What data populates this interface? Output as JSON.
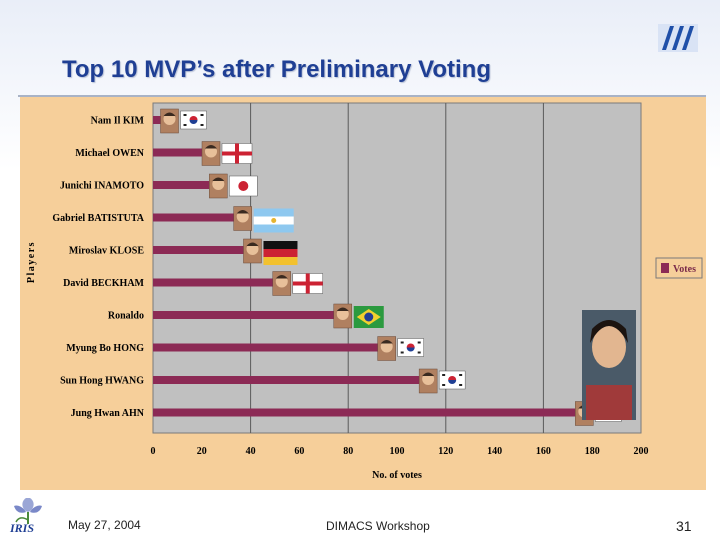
{
  "slide": {
    "title": "Top 10 MVP’s  after Preliminary Voting",
    "footer_date": "May 27, 2004",
    "footer_event": "DIMACS Workshop",
    "page_number": "31",
    "footer_logo_text": "IRIS"
  },
  "chart_data": {
    "type": "bar",
    "orientation": "horizontal",
    "categories": [
      "Nam Il KIM",
      "Michael OWEN",
      "Junichi INAMOTO",
      "Gabriel BATISTUTA",
      "Miroslav KLOSE",
      "David BECKHAM",
      "Ronaldo",
      "Myung Bo HONG",
      "Sun Hong HWANG",
      "Jung Hwan AHN"
    ],
    "series": [
      {
        "name": "Votes",
        "values": [
          8,
          25,
          28,
          38,
          42,
          54,
          79,
          97,
          114,
          178
        ]
      }
    ],
    "flags": [
      "korea",
      "england",
      "japan",
      "argentina",
      "germany",
      "england",
      "brazil",
      "korea",
      "korea",
      "korea"
    ],
    "xlabel": "No. of votes",
    "ylabel": "Players",
    "xlim": [
      0,
      200
    ],
    "xticks": [
      0,
      20,
      40,
      60,
      80,
      100,
      120,
      140,
      160,
      180,
      200
    ],
    "grid": "vertical lines at major ticks",
    "legend_position": "right",
    "colors": {
      "bar": "#8c2a55",
      "plot_bg": "#c0c0c0",
      "panel_bg": "#f6cf9a",
      "grid": "#5a5a5a"
    }
  }
}
